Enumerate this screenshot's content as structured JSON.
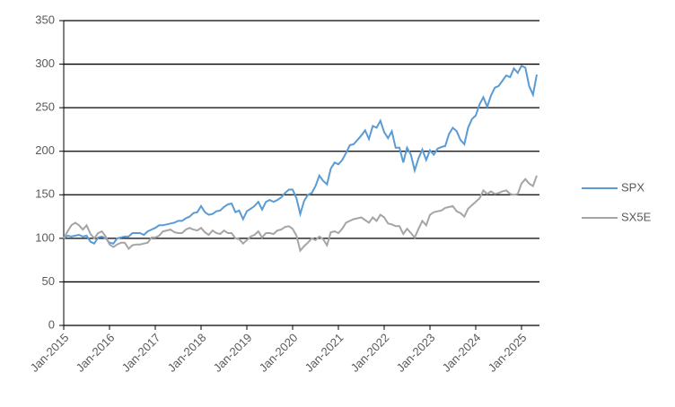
{
  "chart_data": {
    "type": "line",
    "x": [
      "Jan-2015",
      "Feb-2015",
      "Mar-2015",
      "Apr-2015",
      "May-2015",
      "Jun-2015",
      "Jul-2015",
      "Aug-2015",
      "Sep-2015",
      "Oct-2015",
      "Nov-2015",
      "Dec-2015",
      "Jan-2016",
      "Feb-2016",
      "Mar-2016",
      "Apr-2016",
      "May-2016",
      "Jun-2016",
      "Jul-2016",
      "Aug-2016",
      "Sep-2016",
      "Oct-2016",
      "Nov-2016",
      "Dec-2016",
      "Jan-2017",
      "Feb-2017",
      "Mar-2017",
      "Apr-2017",
      "May-2017",
      "Jun-2017",
      "Jul-2017",
      "Aug-2017",
      "Sep-2017",
      "Oct-2017",
      "Nov-2017",
      "Dec-2017",
      "Jan-2018",
      "Feb-2018",
      "Mar-2018",
      "Apr-2018",
      "May-2018",
      "Jun-2018",
      "Jul-2018",
      "Aug-2018",
      "Sep-2018",
      "Oct-2018",
      "Nov-2018",
      "Dec-2018",
      "Jan-2019",
      "Feb-2019",
      "Mar-2019",
      "Apr-2019",
      "May-2019",
      "Jun-2019",
      "Jul-2019",
      "Aug-2019",
      "Sep-2019",
      "Oct-2019",
      "Nov-2019",
      "Dec-2019",
      "Jan-2020",
      "Feb-2020",
      "Mar-2020",
      "Apr-2020",
      "May-2020",
      "Jun-2020",
      "Jul-2020",
      "Aug-2020",
      "Sep-2020",
      "Oct-2020",
      "Nov-2020",
      "Dec-2020",
      "Jan-2021",
      "Feb-2021",
      "Mar-2021",
      "Apr-2021",
      "May-2021",
      "Jun-2021",
      "Jul-2021",
      "Aug-2021",
      "Sep-2021",
      "Oct-2021",
      "Nov-2021",
      "Dec-2021",
      "Jan-2022",
      "Feb-2022",
      "Mar-2022",
      "Apr-2022",
      "May-2022",
      "Jun-2022",
      "Jul-2022",
      "Aug-2022",
      "Sep-2022",
      "Oct-2022",
      "Nov-2022",
      "Dec-2022",
      "Jan-2023",
      "Feb-2023",
      "Mar-2023",
      "Apr-2023",
      "May-2023",
      "Jun-2023",
      "Jul-2023",
      "Aug-2023",
      "Sep-2023",
      "Oct-2023",
      "Nov-2023",
      "Dec-2023",
      "Jan-2024",
      "Feb-2024",
      "Mar-2024",
      "Apr-2024",
      "May-2024",
      "Jun-2024",
      "Jul-2024",
      "Aug-2024",
      "Sep-2024",
      "Oct-2024",
      "Nov-2024",
      "Dec-2024",
      "Jan-2025",
      "Feb-2025",
      "Mar-2025",
      "Apr-2025",
      "May-2025"
    ],
    "series": [
      {
        "name": "SPX",
        "color": "#5b9bd5",
        "values": [
          100,
          103,
          102,
          103,
          104,
          102,
          103,
          96,
          94,
          101,
          102,
          100,
          95,
          94,
          100,
          101,
          102,
          102,
          106,
          106,
          106,
          104,
          108,
          110,
          112,
          115,
          115,
          116,
          117,
          118,
          120,
          120,
          123,
          125,
          129,
          130,
          137,
          130,
          127,
          128,
          131,
          132,
          136,
          139,
          140,
          130,
          132,
          122,
          131,
          134,
          137,
          142,
          133,
          142,
          144,
          142,
          144,
          147,
          152,
          156,
          156,
          146,
          128,
          143,
          150,
          152,
          160,
          172,
          166,
          162,
          180,
          187,
          185,
          190,
          198,
          207,
          208,
          213,
          218,
          224,
          214,
          229,
          227,
          235,
          222,
          215,
          223,
          204,
          204,
          187,
          204,
          196,
          178,
          192,
          202,
          190,
          201,
          196,
          203,
          205,
          206,
          220,
          227,
          223,
          213,
          208,
          227,
          237,
          241,
          254,
          262,
          251,
          264,
          273,
          275,
          281,
          287,
          285,
          295,
          290,
          298,
          296,
          275,
          265,
          288
        ]
      },
      {
        "name": "SX5E",
        "color": "#a5a5a5",
        "values": [
          100,
          108,
          115,
          118,
          115,
          110,
          115,
          105,
          100,
          106,
          108,
          102,
          93,
          90,
          93,
          95,
          95,
          88,
          92,
          93,
          93,
          94,
          95,
          101,
          101,
          103,
          108,
          109,
          110,
          107,
          106,
          106,
          110,
          112,
          110,
          109,
          112,
          107,
          104,
          109,
          106,
          105,
          109,
          106,
          106,
          100,
          99,
          94,
          98,
          102,
          104,
          108,
          101,
          106,
          106,
          105,
          109,
          110,
          113,
          114,
          111,
          103,
          86,
          91,
          95,
          100,
          98,
          102,
          99,
          92,
          107,
          108,
          106,
          111,
          118,
          120,
          122,
          123,
          124,
          121,
          118,
          124,
          120,
          127,
          124,
          117,
          116,
          114,
          114,
          105,
          111,
          106,
          101,
          111,
          120,
          115,
          127,
          130,
          131,
          132,
          135,
          136,
          137,
          131,
          129,
          125,
          134,
          138,
          142,
          146,
          155,
          151,
          154,
          151,
          152,
          154,
          155,
          151,
          150,
          151,
          163,
          168,
          163,
          160,
          172
        ]
      }
    ],
    "ylim": [
      0,
      350
    ],
    "yticks": [
      0,
      50,
      100,
      150,
      200,
      250,
      300,
      350
    ],
    "xticks": [
      "Jan-2015",
      "Jan-2016",
      "Jan-2017",
      "Jan-2018",
      "Jan-2019",
      "Jan-2020",
      "Jan-2021",
      "Jan-2022",
      "Jan-2023",
      "Jan-2024",
      "Jan-2025"
    ],
    "grid": true,
    "legend": "right"
  }
}
